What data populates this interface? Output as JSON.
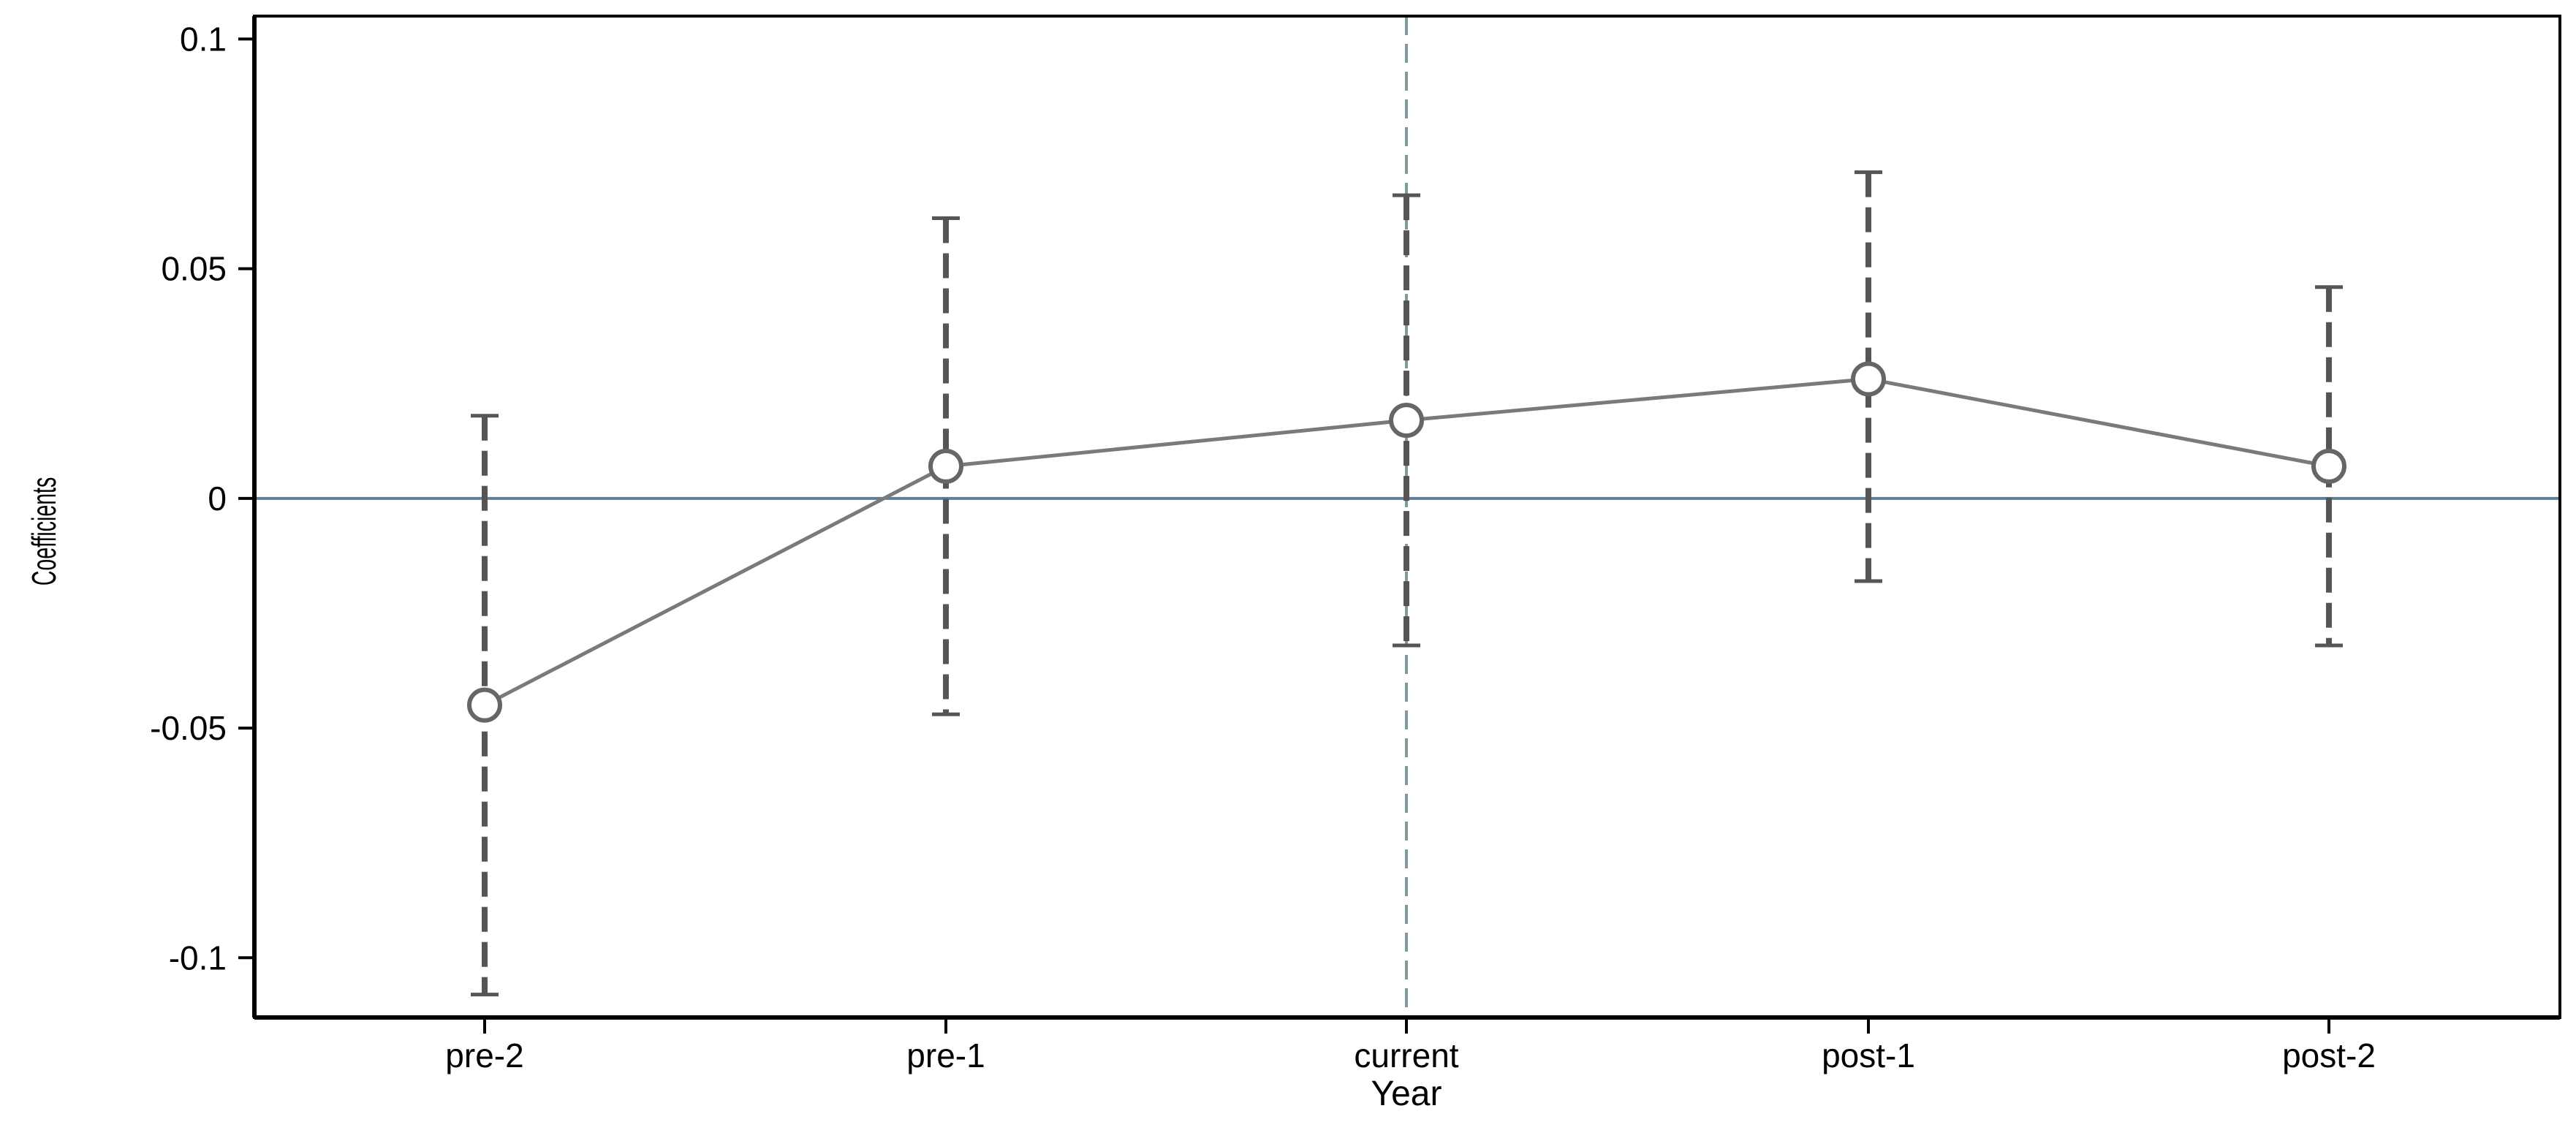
{
  "chart_data": {
    "type": "line",
    "xlabel": "Year",
    "ylabel": "Coefficients",
    "categories": [
      "pre-2",
      "pre-1",
      "current",
      "post-1",
      "post-2"
    ],
    "series": [
      {
        "values": [
          -0.045,
          0.007,
          0.017,
          0.026,
          0.007
        ],
        "ci_lower": [
          -0.108,
          -0.047,
          -0.032,
          -0.018,
          -0.032
        ],
        "ci_upper": [
          0.018,
          0.061,
          0.066,
          0.071,
          0.046
        ]
      }
    ],
    "ylim": [
      -0.113,
      0.105
    ],
    "yticks": [
      -0.1,
      -0.05,
      0,
      0.05,
      0.1
    ],
    "ytick_labels": [
      "-0.1",
      "-0.05",
      "0",
      "0.05",
      "0.1"
    ],
    "reference_lines": {
      "horizontal_at": 0,
      "vertical_at_category": "current"
    },
    "grid": false,
    "legend": "none",
    "colors": {
      "line": "#7a7a7a",
      "marker": "#666666",
      "ci": "#555555",
      "zero_line": "#5f7f96",
      "vline": "#7f9a9a",
      "frame": "#000000"
    }
  }
}
